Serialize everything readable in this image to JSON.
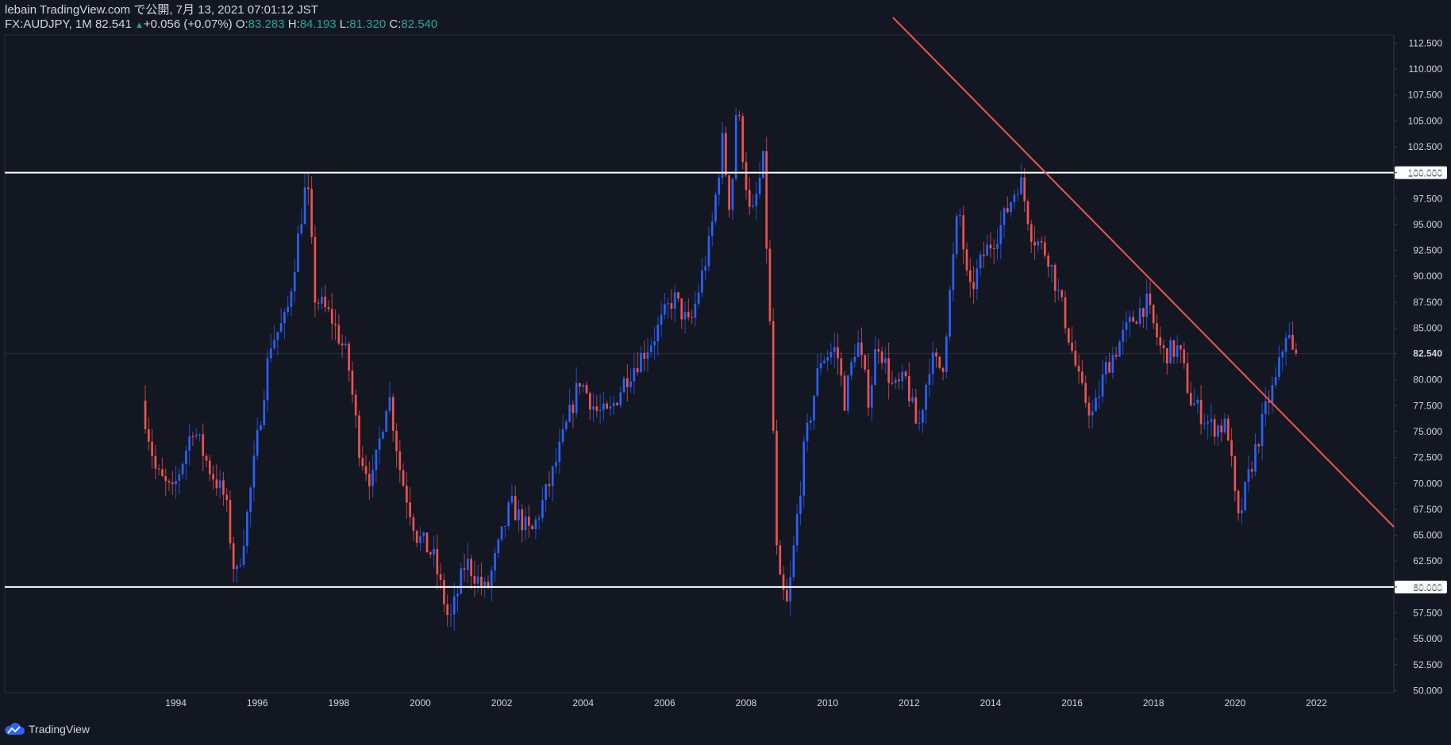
{
  "header": {
    "published": "lebain TradingView.com で公開, 7月 13, 2021 07:01:12 JST",
    "symbol": "FX:AUDJPY, 1M",
    "last": "82.541",
    "change": "+0.056 (+0.07%)",
    "o_label": "O:",
    "o_value": "83.283",
    "h_label": "H:",
    "h_value": "84.193",
    "l_label": "L:",
    "l_value": "81.320",
    "c_label": "C:",
    "c_value": "82.540"
  },
  "colors": {
    "background": "#131722",
    "up": "#2962ff",
    "down": "#ef5350",
    "trendline": "#f05450",
    "hline": "#ffffff",
    "axis_text": "#d1d4dc"
  },
  "footer": {
    "brand": "TradingView",
    "logo_icon": "tradingview-cloud-icon"
  },
  "chart_data": {
    "type": "candlestick",
    "timeframe": "1M",
    "x_tick_labels": [
      "1994",
      "1996",
      "1998",
      "2000",
      "2002",
      "2004",
      "2006",
      "2008",
      "2010",
      "2012",
      "2014",
      "2016",
      "2018",
      "2020",
      "2022"
    ],
    "y_tick_labels": [
      "112.500",
      "110.000",
      "107.500",
      "105.000",
      "102.500",
      "100.000",
      "97.500",
      "95.000",
      "92.500",
      "90.000",
      "87.500",
      "85.000",
      "82.540",
      "80.000",
      "77.500",
      "75.000",
      "72.500",
      "70.000",
      "67.500",
      "65.000",
      "62.500",
      "60.000",
      "57.500",
      "55.000",
      "52.500",
      "50.000"
    ],
    "ylim": [
      49.8,
      113.3
    ],
    "xlim": [
      1989.8,
      2023.9
    ],
    "price_label": "82.540",
    "horizontal_lines": [
      {
        "value": 100,
        "label": "100.000"
      },
      {
        "value": 60,
        "label": "60.000"
      }
    ],
    "trendline": {
      "from": [
        2011.6,
        115.0
      ],
      "to": [
        2023.9,
        65.8
      ]
    },
    "anchors": [
      [
        1993.25,
        78.0
      ],
      [
        1993.6,
        71.0
      ],
      [
        1994.0,
        69.0
      ],
      [
        1994.5,
        75.5
      ],
      [
        1994.9,
        71.5
      ],
      [
        1995.3,
        68.5
      ],
      [
        1995.55,
        60.5
      ],
      [
        1995.8,
        66.0
      ],
      [
        1996.4,
        83.5
      ],
      [
        1996.8,
        86.0
      ],
      [
        1997.3,
        99.5
      ],
      [
        1997.5,
        88.0
      ],
      [
        1997.9,
        86.0
      ],
      [
        1998.3,
        82.0
      ],
      [
        1998.6,
        73.0
      ],
      [
        1998.9,
        70.0
      ],
      [
        1999.3,
        79.0
      ],
      [
        1999.6,
        71.0
      ],
      [
        2000.0,
        65.0
      ],
      [
        2000.4,
        63.0
      ],
      [
        2000.8,
        56.5
      ],
      [
        2001.2,
        62.5
      ],
      [
        2001.7,
        59.5
      ],
      [
        2002.3,
        68.0
      ],
      [
        2002.8,
        65.0
      ],
      [
        2003.3,
        70.5
      ],
      [
        2004.0,
        80.0
      ],
      [
        2004.4,
        77.0
      ],
      [
        2004.7,
        76.5
      ],
      [
        2005.1,
        80.0
      ],
      [
        2005.8,
        84.0
      ],
      [
        2006.3,
        88.0
      ],
      [
        2006.7,
        85.0
      ],
      [
        2007.2,
        93.5
      ],
      [
        2007.5,
        103.0
      ],
      [
        2007.7,
        96.0
      ],
      [
        2007.85,
        107.0
      ],
      [
        2008.2,
        95.0
      ],
      [
        2008.5,
        101.0
      ],
      [
        2008.7,
        82.0
      ],
      [
        2008.85,
        61.0
      ],
      [
        2009.1,
        58.0
      ],
      [
        2009.5,
        73.0
      ],
      [
        2009.9,
        82.0
      ],
      [
        2010.3,
        83.0
      ],
      [
        2010.5,
        78.0
      ],
      [
        2010.8,
        84.0
      ],
      [
        2011.1,
        78.0
      ],
      [
        2011.3,
        84.0
      ],
      [
        2011.7,
        79.0
      ],
      [
        2012.0,
        80.0
      ],
      [
        2012.3,
        75.0
      ],
      [
        2012.6,
        82.0
      ],
      [
        2012.9,
        81.0
      ],
      [
        2013.3,
        97.0
      ],
      [
        2013.55,
        88.0
      ],
      [
        2013.9,
        92.0
      ],
      [
        2014.3,
        94.5
      ],
      [
        2014.8,
        99.5
      ],
      [
        2015.1,
        94.0
      ],
      [
        2015.5,
        92.0
      ],
      [
        2015.9,
        86.0
      ],
      [
        2016.3,
        79.0
      ],
      [
        2016.6,
        76.5
      ],
      [
        2016.9,
        81.0
      ],
      [
        2017.3,
        84.0
      ],
      [
        2017.6,
        86.0
      ],
      [
        2017.9,
        87.5
      ],
      [
        2018.3,
        82.5
      ],
      [
        2018.7,
        83.0
      ],
      [
        2019.0,
        78.0
      ],
      [
        2019.5,
        75.5
      ],
      [
        2019.9,
        75.5
      ],
      [
        2020.15,
        66.0
      ],
      [
        2020.5,
        72.0
      ],
      [
        2020.9,
        78.0
      ],
      [
        2021.1,
        80.0
      ],
      [
        2021.35,
        85.0
      ],
      [
        2021.5,
        82.54
      ]
    ]
  }
}
